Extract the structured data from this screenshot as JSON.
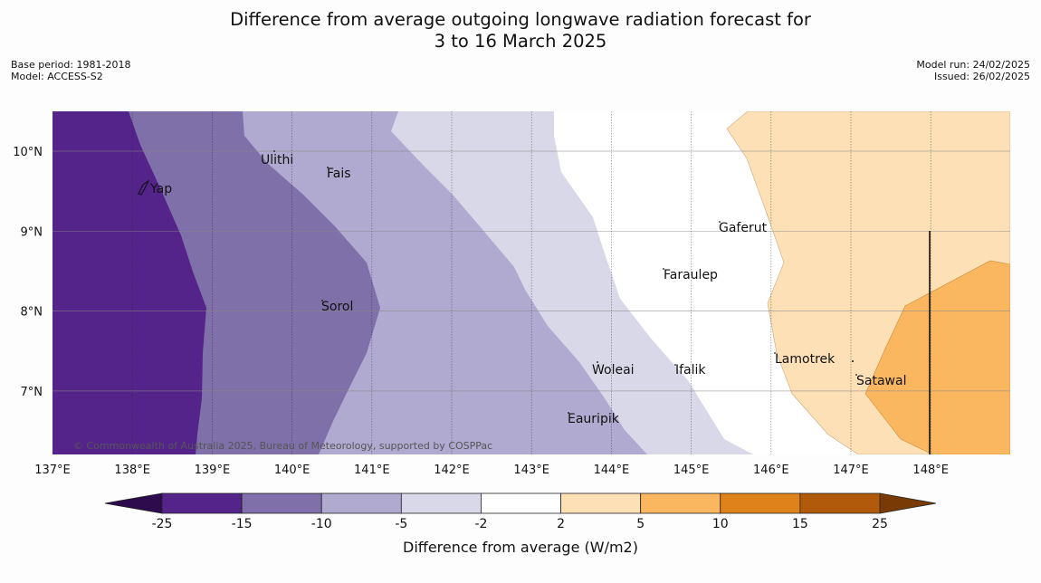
{
  "title_line1": "Difference from average outgoing longwave radiation forecast for",
  "title_line2": "3 to 16 March 2025",
  "base_period": "Base period: 1981-2018",
  "model": "Model: ACCESS-S2",
  "model_run": "Model run: 24/02/2025",
  "issued": "Issued: 26/02/2025",
  "copyright": "© Commonwealth of Australia 2025, Bureau of Meteorology, supported by COSPPac",
  "lon_ticks": [
    "137°E",
    "138°E",
    "139°E",
    "140°E",
    "141°E",
    "142°E",
    "143°E",
    "144°E",
    "145°E",
    "146°E",
    "147°E",
    "148°E"
  ],
  "lat_ticks": [
    "10°N",
    "9°N",
    "8°N",
    "7°N"
  ],
  "places": [
    {
      "name": "Yap"
    },
    {
      "name": "Ulithi"
    },
    {
      "name": "Fais"
    },
    {
      "name": "Gaferut"
    },
    {
      "name": "Faraulep"
    },
    {
      "name": "Sorol"
    },
    {
      "name": "Woleai"
    },
    {
      "name": "Ifalik"
    },
    {
      "name": "Lamotrek"
    },
    {
      "name": "Satawal"
    },
    {
      "name": "Eauripik"
    }
  ],
  "colorbar": {
    "labels": [
      "-25",
      "-15",
      "-10",
      "-5",
      "-2",
      "2",
      "5",
      "10",
      "15",
      "25"
    ],
    "title": "Difference from average (W/m2)",
    "colors": {
      "under": "#2d0b4d",
      "c1": "#54248a",
      "c2": "#7f70a9",
      "c3": "#b0a9d0",
      "c4": "#d8d8e9",
      "c5": "#ffffff",
      "c6": "#fde0b5",
      "c7": "#fbb760",
      "c8": "#e0821a",
      "c9": "#b15a0b",
      "over": "#7a3a05"
    }
  }
}
